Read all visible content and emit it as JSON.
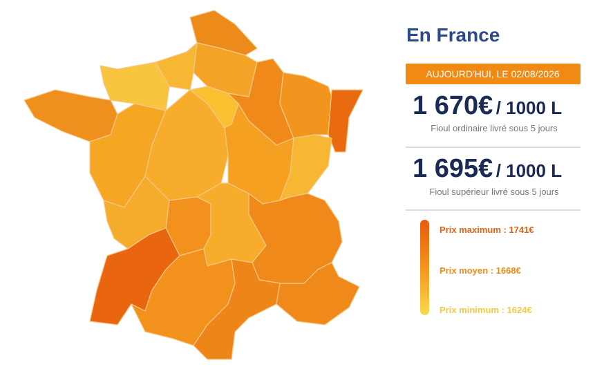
{
  "header": {
    "title": "En France",
    "date_banner": "AUJOURD'HUI, LE 02/08/2026"
  },
  "prices": [
    {
      "price": "1 670€",
      "unit": "/ 1000 L",
      "description": "Fioul ordinaire livré sous 5 jours"
    },
    {
      "price": "1 695€",
      "unit": "/ 1000 L",
      "description": "Fioul supérieur livré sous 5 jours"
    }
  ],
  "legend": {
    "labels": [
      "Prix maximum : 1741€",
      "Prix moyen : 1668€",
      "Prix minimum : 1624€"
    ]
  }
}
